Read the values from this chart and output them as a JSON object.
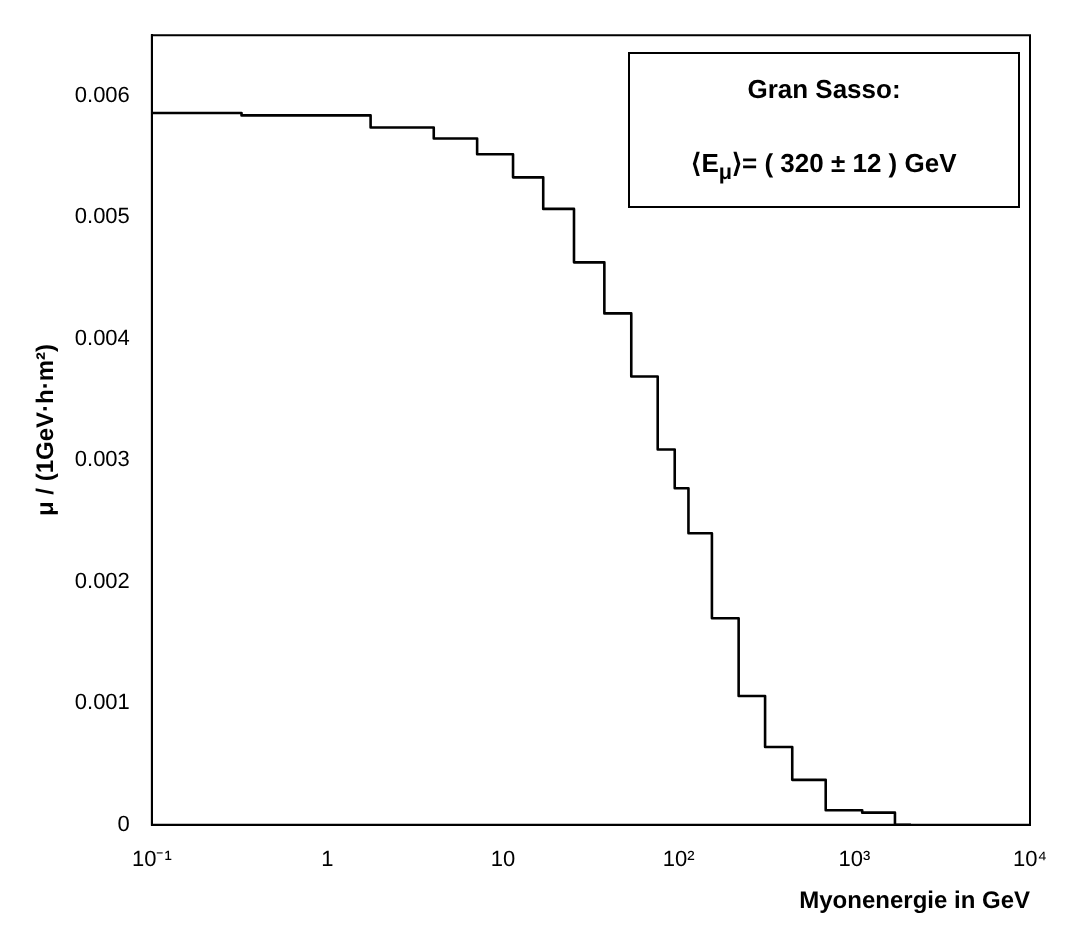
{
  "chart_data": {
    "type": "step",
    "xlabel": "Myonenergie in GeV",
    "ylabel": "μ / (1GeV·h·m²)",
    "annotations": [
      "Gran Sasso:",
      "⟨E$_{μ}$⟩= ( 320 ± 12 ) GeV"
    ],
    "log": "x",
    "grid": false,
    "legend": false,
    "line_style": "solid",
    "marker": "none",
    "xlim": [
      0.1,
      10000
    ],
    "ylim": [
      0,
      0.0065
    ],
    "xticks": [
      {
        "value": 0.1,
        "label": "10⁻¹"
      },
      1,
      10,
      {
        "value": 100,
        "label": "10²"
      },
      {
        "value": 1000,
        "label": "10³"
      },
      {
        "value": 10000,
        "label": "10⁴"
      }
    ],
    "yticks": [
      0,
      0.001,
      0.002,
      0.003,
      0.004,
      0.005,
      0.006
    ],
    "series": [
      {
        "color": "#000000",
        "x": [
          0.1,
          1.05,
          2.95,
          5.5,
          9.2,
          14.1,
          20.3,
          31.6,
          45,
          64,
          90,
          100,
          129,
          185,
          260,
          370,
          530,
          890,
          1380,
          2100
        ],
        "values": [
          0.00586,
          0.00584,
          0.00574,
          0.00565,
          0.00552,
          0.00533,
          0.00507,
          0.00463,
          0.00421,
          0.00369,
          0.00309,
          0.00277,
          0.0024,
          0.0017,
          0.00106,
          0.00064,
          0.00037,
          0.00012,
          0.0001,
          0
        ]
      }
    ]
  }
}
